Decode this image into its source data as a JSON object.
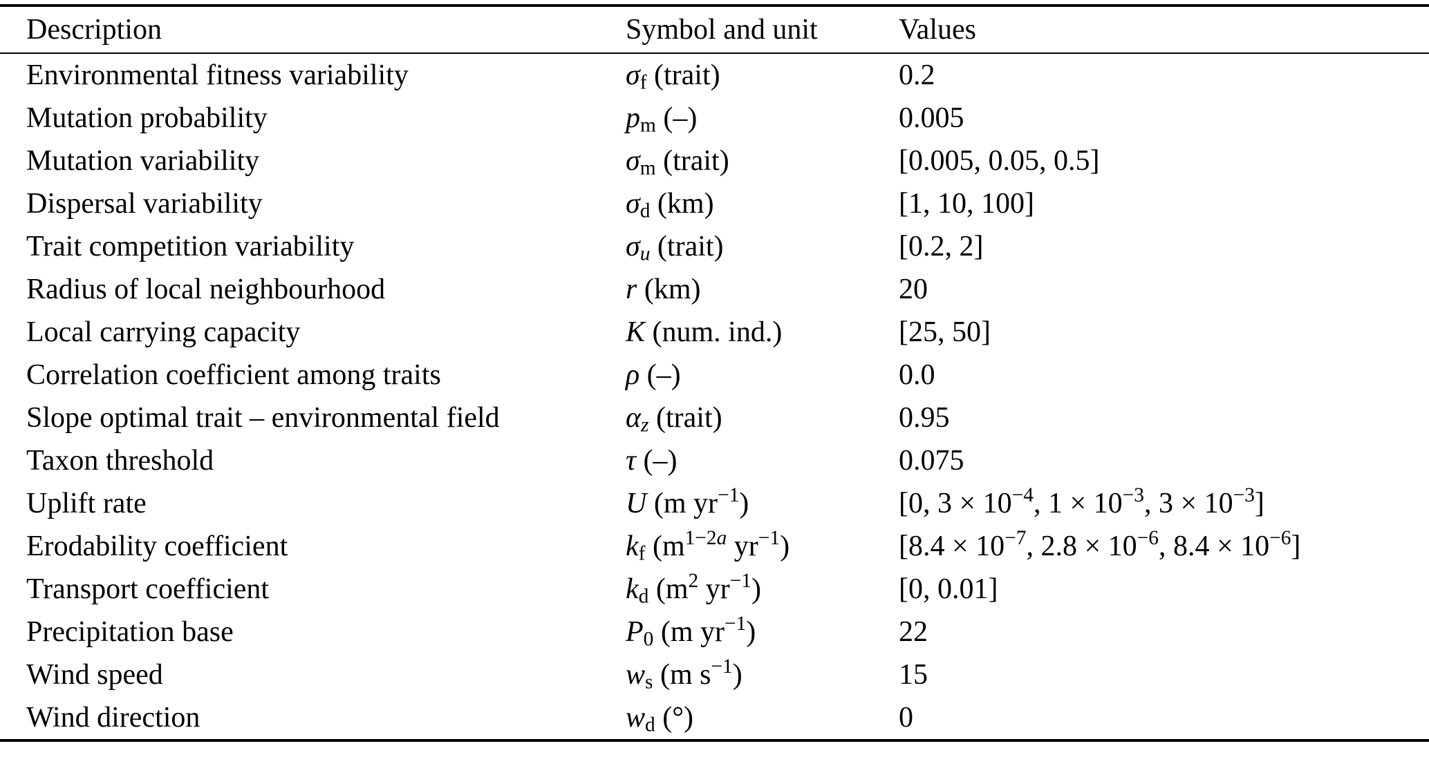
{
  "table": {
    "headers": [
      "Description",
      "Symbol and unit",
      "Values"
    ],
    "rows": [
      {
        "description": "Environmental fitness variability",
        "symbol": [
          {
            "t": "σ",
            "s": "i"
          },
          {
            "t": "f",
            "s": "sub"
          },
          {
            "t": " (trait)"
          }
        ],
        "values": "0.2"
      },
      {
        "description": "Mutation probability",
        "symbol": [
          {
            "t": "p",
            "s": "i"
          },
          {
            "t": "m",
            "s": "sub"
          },
          {
            "t": " (–)"
          }
        ],
        "values": "0.005"
      },
      {
        "description": "Mutation variability",
        "symbol": [
          {
            "t": "σ",
            "s": "i"
          },
          {
            "t": "m",
            "s": "sub"
          },
          {
            "t": " (trait)"
          }
        ],
        "values": "[0.005, 0.05, 0.5]"
      },
      {
        "description": "Dispersal variability",
        "symbol": [
          {
            "t": "σ",
            "s": "i"
          },
          {
            "t": "d",
            "s": "sub"
          },
          {
            "t": " (km)"
          }
        ],
        "values": "[1, 10, 100]"
      },
      {
        "description": "Trait competition variability",
        "symbol": [
          {
            "t": "σ",
            "s": "i"
          },
          {
            "t": "u",
            "s": "i sub"
          },
          {
            "t": " (trait)"
          }
        ],
        "values": "[0.2, 2]"
      },
      {
        "description": "Radius of local neighbourhood",
        "symbol": [
          {
            "t": "r",
            "s": "i"
          },
          {
            "t": " (km)"
          }
        ],
        "values": "20"
      },
      {
        "description": "Local carrying capacity",
        "symbol": [
          {
            "t": "K",
            "s": "i"
          },
          {
            "t": " (num. ind.)"
          }
        ],
        "values": "[25, 50]"
      },
      {
        "description": "Correlation coefficient among traits",
        "symbol": [
          {
            "t": "ρ",
            "s": "i"
          },
          {
            "t": " (–)"
          }
        ],
        "values": "0.0"
      },
      {
        "description": "Slope optimal trait – environmental field",
        "symbol": [
          {
            "t": "α",
            "s": "i"
          },
          {
            "t": "z",
            "s": "i sub"
          },
          {
            "t": " (trait)"
          }
        ],
        "values": "0.95"
      },
      {
        "description": "Taxon threshold",
        "symbol": [
          {
            "t": "τ",
            "s": "i"
          },
          {
            "t": " (–)"
          }
        ],
        "values": "0.075"
      },
      {
        "description": "Uplift rate",
        "symbol": [
          {
            "t": "U",
            "s": "i"
          },
          {
            "t": " (m yr"
          },
          {
            "t": "−1",
            "s": "sup"
          },
          {
            "t": ")"
          }
        ],
        "values": [
          {
            "t": "[0, 3 × 10"
          },
          {
            "t": "−4",
            "s": "sup"
          },
          {
            "t": ", 1 × 10"
          },
          {
            "t": "−3",
            "s": "sup"
          },
          {
            "t": ", 3 × 10"
          },
          {
            "t": "−3",
            "s": "sup"
          },
          {
            "t": "]"
          }
        ]
      },
      {
        "description": "Erodability coefficient",
        "symbol": [
          {
            "t": "k",
            "s": "i"
          },
          {
            "t": "f",
            "s": "sub"
          },
          {
            "t": " (m"
          },
          {
            "t": "1−2",
            "s": "sup"
          },
          {
            "t": "a",
            "s": "i sup"
          },
          {
            "t": " yr"
          },
          {
            "t": "−1",
            "s": "sup"
          },
          {
            "t": ")"
          }
        ],
        "values": [
          {
            "t": "[8.4 × 10"
          },
          {
            "t": "−7",
            "s": "sup"
          },
          {
            "t": ", 2.8 × 10"
          },
          {
            "t": "−6",
            "s": "sup"
          },
          {
            "t": ", 8.4 × 10"
          },
          {
            "t": "−6",
            "s": "sup"
          },
          {
            "t": "]"
          }
        ]
      },
      {
        "description": "Transport coefficient",
        "symbol": [
          {
            "t": "k",
            "s": "i"
          },
          {
            "t": "d",
            "s": "sub"
          },
          {
            "t": " (m"
          },
          {
            "t": "2",
            "s": "sup"
          },
          {
            "t": " yr"
          },
          {
            "t": "−1",
            "s": "sup"
          },
          {
            "t": ")"
          }
        ],
        "values": "[0, 0.01]"
      },
      {
        "description": "Precipitation base",
        "symbol": [
          {
            "t": "P",
            "s": "i"
          },
          {
            "t": "0",
            "s": "sub"
          },
          {
            "t": " (m yr"
          },
          {
            "t": "−1",
            "s": "sup"
          },
          {
            "t": ")"
          }
        ],
        "values": "22"
      },
      {
        "description": "Wind speed",
        "symbol": [
          {
            "t": "w",
            "s": "i"
          },
          {
            "t": "s",
            "s": "sub"
          },
          {
            "t": " (m s"
          },
          {
            "t": "−1",
            "s": "sup"
          },
          {
            "t": ")"
          }
        ],
        "values": "15"
      },
      {
        "description": "Wind direction",
        "symbol": [
          {
            "t": "w",
            "s": "i"
          },
          {
            "t": "d",
            "s": "sub"
          },
          {
            "t": " (°)"
          }
        ],
        "values": "0"
      }
    ]
  }
}
